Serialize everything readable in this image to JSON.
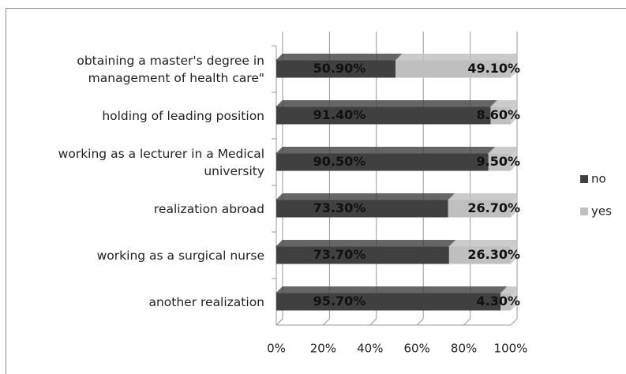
{
  "chart_data": {
    "type": "bar",
    "stacked": true,
    "categories": [
      "obtaining a master's degree in management of health care\"",
      "holding of leading position",
      "working as a lecturer in a Medical university",
      "realization abroad",
      "working as a surgical nurse",
      "another realization"
    ],
    "series": [
      {
        "name": "no",
        "color": "#404040",
        "values": [
          50.9,
          91.4,
          90.5,
          73.3,
          73.7,
          95.7
        ],
        "value_labels": [
          "50.90%",
          "91.40%",
          "90.50%",
          "73.30%",
          "73.70%",
          "95.70%"
        ]
      },
      {
        "name": "yes",
        "color": "#bfbfbf",
        "values": [
          49.1,
          8.6,
          9.5,
          26.7,
          26.3,
          4.3
        ],
        "value_labels": [
          "49.10%",
          "8.60%",
          "9.50%",
          "26.70%",
          "26.30%",
          "4.30%"
        ]
      }
    ],
    "xlim": [
      0,
      100
    ],
    "xticks": [
      {
        "value": 0,
        "label": "0%"
      },
      {
        "value": 20,
        "label": "20%"
      },
      {
        "value": 40,
        "label": "40%"
      },
      {
        "value": 60,
        "label": "60%"
      },
      {
        "value": 80,
        "label": "80%"
      },
      {
        "value": 100,
        "label": "100%"
      }
    ],
    "grid": true,
    "legend": "right"
  }
}
